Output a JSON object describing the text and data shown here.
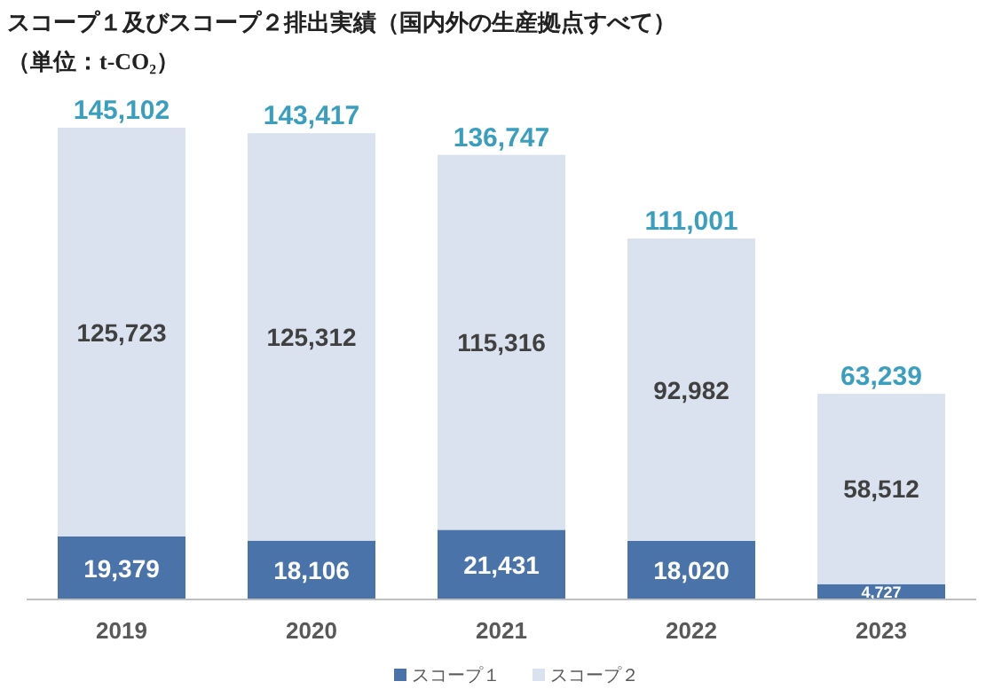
{
  "chart_data": {
    "type": "bar",
    "title": "スコープ１及びスコープ２排出実績（国内外の生産拠点すべて）",
    "subtitle": "（単位：t-CO₂）",
    "categories": [
      "2019",
      "2020",
      "2021",
      "2022",
      "2023"
    ],
    "stacked": true,
    "legend": "bottom",
    "series": [
      {
        "name": "スコープ１",
        "color": "#4a73a9",
        "values": [
          19379,
          18106,
          21431,
          18020,
          4727
        ],
        "value_labels": [
          "19,379",
          "18,106",
          "21,431",
          "18,020",
          "4,727"
        ]
      },
      {
        "name": "スコープ２",
        "color": "#dbe2ef",
        "values": [
          125723,
          125312,
          115316,
          92982,
          58512
        ],
        "value_labels": [
          "125,723",
          "125,312",
          "115,316",
          "92,982",
          "58,512"
        ]
      }
    ],
    "totals": [
      "145,102",
      "143,417",
      "136,747",
      "111,001",
      "63,239"
    ]
  }
}
